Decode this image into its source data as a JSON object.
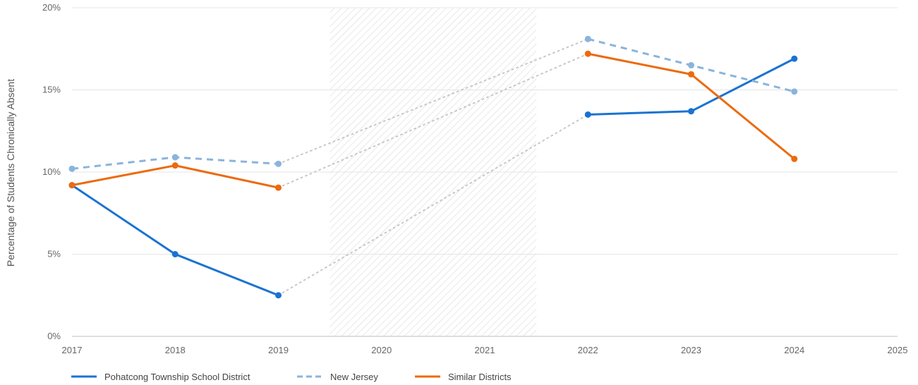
{
  "chart_data": {
    "type": "line",
    "title": "",
    "xlabel": "",
    "ylabel": "Percentage of Students Chronically Absent",
    "xlim": [
      2017,
      2025
    ],
    "ylim": [
      0,
      20
    ],
    "x_ticks": [
      "2017",
      "2018",
      "2019",
      "2020",
      "2021",
      "2022",
      "2023",
      "2024",
      "2025"
    ],
    "y_ticks": [
      "0%",
      "5%",
      "10%",
      "15%",
      "20%"
    ],
    "gap_period": [
      2019.5,
      2021.5
    ],
    "legend_position": "bottom-left",
    "gridlines": "horizontal",
    "series": [
      {
        "name": "Pohatcong Township School District",
        "style": "solid",
        "color": "#1a73d1",
        "points": [
          [
            2017,
            9.2
          ],
          [
            2018,
            5.0
          ],
          [
            2019,
            2.5
          ],
          [
            2022,
            13.5
          ],
          [
            2023,
            13.7
          ],
          [
            2024,
            16.9
          ]
        ]
      },
      {
        "name": "New Jersey",
        "style": "dashed",
        "color": "#8ab4dc",
        "points": [
          [
            2017,
            10.2
          ],
          [
            2018,
            10.9
          ],
          [
            2019,
            10.5
          ],
          [
            2022,
            18.1
          ],
          [
            2023,
            16.5
          ],
          [
            2024,
            14.9
          ]
        ]
      },
      {
        "name": "Similar Districts",
        "style": "solid",
        "color": "#ec6a0e",
        "points": [
          [
            2017,
            9.2
          ],
          [
            2018,
            10.4
          ],
          [
            2019,
            9.05
          ],
          [
            2022,
            17.2
          ],
          [
            2023,
            15.95
          ],
          [
            2024,
            10.8
          ]
        ]
      }
    ],
    "gap_connector_color": "#c8c8c8"
  }
}
